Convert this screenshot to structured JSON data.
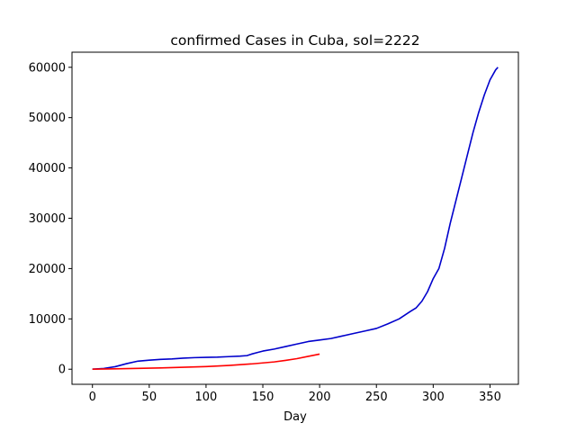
{
  "chart_data": {
    "type": "line",
    "title": "confirmed Cases in Cuba, sol=2222",
    "xlabel": "Day",
    "ylabel": "",
    "xlim": [
      -18,
      375
    ],
    "ylim": [
      -3000,
      63000
    ],
    "xticks": [
      0,
      50,
      100,
      150,
      200,
      250,
      300,
      350
    ],
    "yticks": [
      0,
      10000,
      20000,
      30000,
      40000,
      50000,
      60000
    ],
    "grid": false,
    "legend": "none",
    "series": [
      {
        "color": "#0000cc",
        "x": [
          0,
          10,
          20,
          30,
          40,
          50,
          60,
          70,
          80,
          90,
          100,
          110,
          120,
          130,
          136,
          140,
          145,
          150,
          160,
          170,
          180,
          190,
          200,
          210,
          220,
          230,
          240,
          250,
          260,
          270,
          280,
          285,
          290,
          295,
          300,
          305,
          310,
          315,
          320,
          325,
          330,
          335,
          340,
          345,
          350,
          355,
          357
        ],
        "y": [
          0,
          150,
          500,
          1100,
          1600,
          1800,
          1950,
          2050,
          2200,
          2300,
          2350,
          2400,
          2500,
          2600,
          2700,
          3000,
          3300,
          3600,
          4000,
          4500,
          5000,
          5500,
          5800,
          6100,
          6600,
          7100,
          7600,
          8100,
          9000,
          10000,
          11500,
          12200,
          13500,
          15400,
          18000,
          20000,
          24000,
          29000,
          33500,
          38000,
          42500,
          47000,
          51000,
          54500,
          57500,
          59500,
          60000
        ]
      },
      {
        "color": "#ff0000",
        "x": [
          0,
          20,
          40,
          60,
          80,
          100,
          120,
          140,
          160,
          170,
          180,
          190,
          200
        ],
        "y": [
          0,
          80,
          160,
          260,
          380,
          520,
          750,
          1050,
          1450,
          1750,
          2100,
          2550,
          3000
        ]
      }
    ]
  }
}
